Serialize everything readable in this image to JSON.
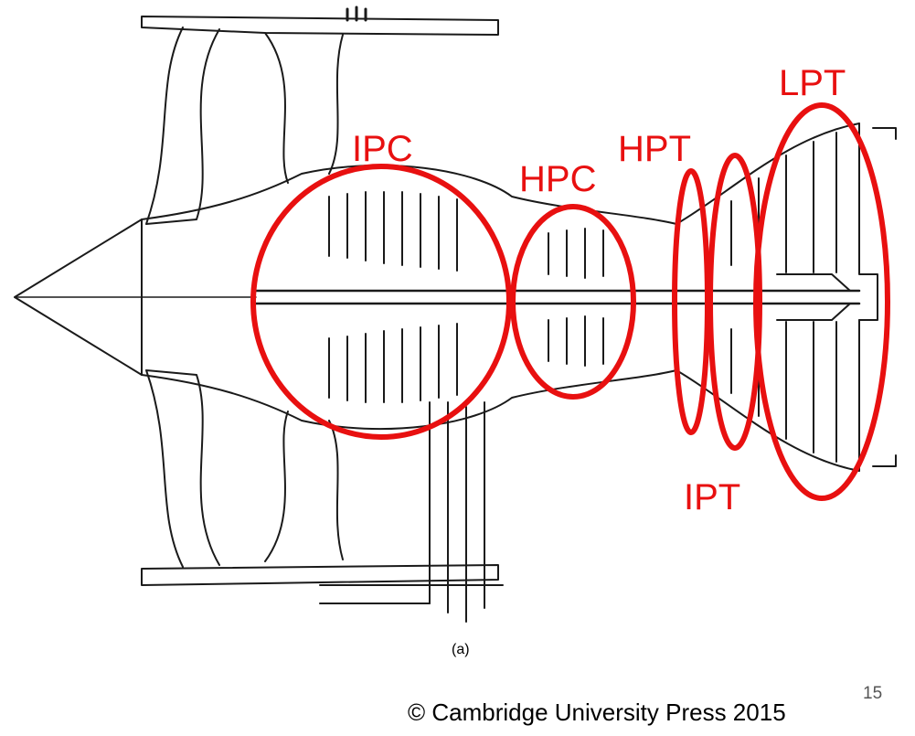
{
  "labels": {
    "ipc": "IPC",
    "hpc": "HPC",
    "hpt": "HPT",
    "lpt": "LPT",
    "ipt": "IPT"
  },
  "caption": "(a)",
  "page_number": "15",
  "copyright": "© Cambridge University Press 2015",
  "colors": {
    "annotation": "#e81010",
    "drawing": "#1a1a1a"
  }
}
